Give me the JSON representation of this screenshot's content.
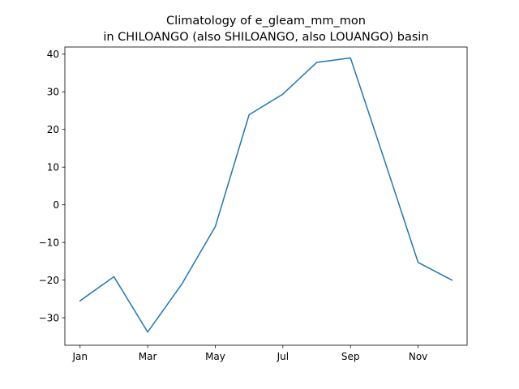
{
  "chart_data": {
    "type": "line",
    "title": "Climatology of e_gleam_mm_mon",
    "subtitle": "in CHILOANGO (also SHILOANGO, also LOUANGO) basin",
    "xlabel": "",
    "ylabel": "",
    "x": [
      1,
      2,
      3,
      4,
      5,
      6,
      7,
      8,
      9,
      10,
      11,
      12
    ],
    "x_ticks": [
      {
        "x": 1,
        "label": "Jan"
      },
      {
        "x": 3,
        "label": "Mar"
      },
      {
        "x": 5,
        "label": "May"
      },
      {
        "x": 7,
        "label": "Jul"
      },
      {
        "x": 9,
        "label": "Sep"
      },
      {
        "x": 11,
        "label": "Nov"
      }
    ],
    "y_ticks": [
      -30,
      -20,
      -10,
      0,
      10,
      20,
      30,
      40
    ],
    "xlim": [
      0.55,
      12.45
    ],
    "ylim": [
      -37.3,
      41.9
    ],
    "grid": false,
    "series": [
      {
        "color": "#1f77b4",
        "values": [
          -25.5,
          -19.1,
          -33.8,
          -21.2,
          -5.8,
          23.9,
          29.4,
          37.8,
          39.0,
          12.0,
          -15.3,
          -20.0
        ]
      }
    ]
  }
}
